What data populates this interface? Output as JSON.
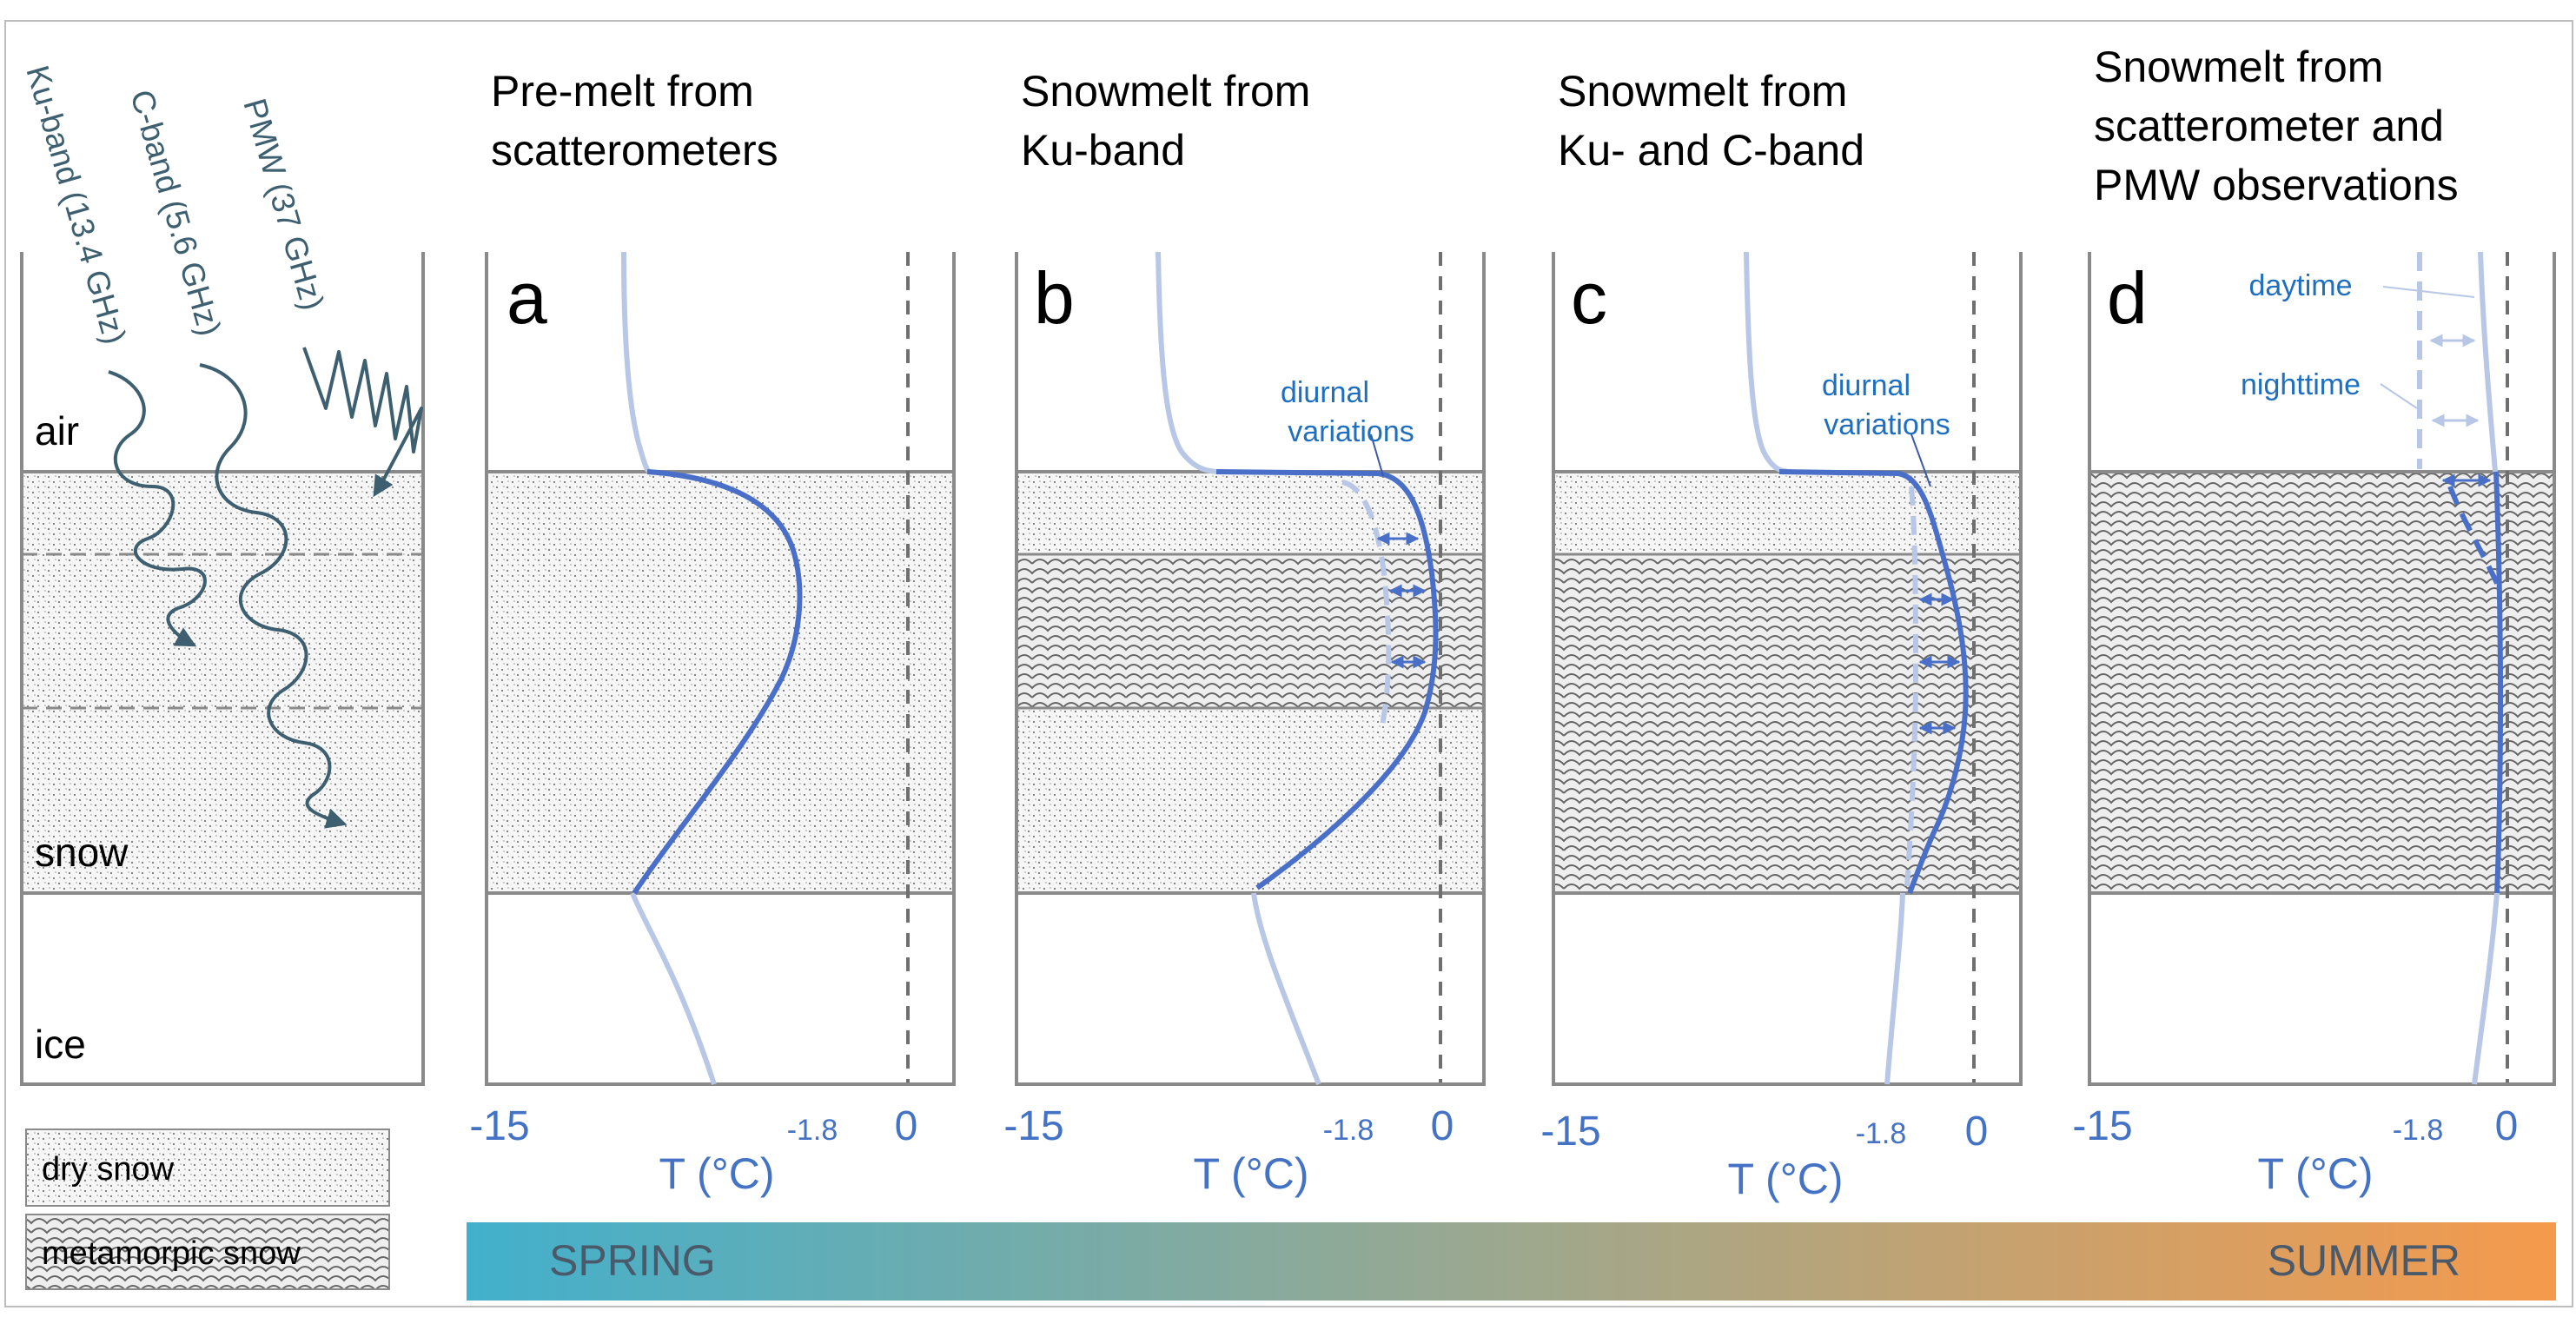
{
  "colors": {
    "axis_blue": "#4472c4",
    "profile_blue": "#4a6fc9",
    "profile_light": "#b8c7e6",
    "annotation_blue": "#1f6fc0",
    "wave_color": "#3d5f70",
    "frame_gray": "#8a8a8a",
    "gradient_start": "#42b0cc",
    "gradient_end": "#f59a4c",
    "season_text": "#4a5a6a"
  },
  "left_panel": {
    "waves": [
      {
        "label": "Ku-band (13.4 GHz)",
        "icon": "wavy-arrow-icon"
      },
      {
        "label": "C-band (5.6 GHz)",
        "icon": "wavy-arrow-icon"
      },
      {
        "label": "PMW (37 GHz)",
        "icon": "wavy-arrow-icon"
      }
    ],
    "layers": {
      "air": "air",
      "snow": "snow",
      "ice": "ice"
    }
  },
  "legend": {
    "dry_snow": "dry snow",
    "metamorphic_snow": "metamorpic snow"
  },
  "panels": [
    {
      "letter": "a",
      "title": [
        "Pre-melt from",
        "scatterometers"
      ]
    },
    {
      "letter": "b",
      "title": [
        "Snowmelt from",
        "Ku-band"
      ],
      "annotation": [
        "diurnal",
        "variations"
      ]
    },
    {
      "letter": "c",
      "title": [
        "Snowmelt from",
        "Ku- and C-band"
      ],
      "annotation": [
        "diurnal",
        "variations"
      ]
    },
    {
      "letter": "d",
      "title": [
        "Snowmelt from",
        "scatterometer and",
        "PMW observations"
      ],
      "label_day": "daytime",
      "label_night": "nighttime"
    }
  ],
  "axis": {
    "tick_min": "-15",
    "tick_mid": "-1.8",
    "tick_max": "0",
    "label": "T (°C)"
  },
  "season_bar": {
    "start": "SPRING",
    "end": "SUMMER"
  }
}
